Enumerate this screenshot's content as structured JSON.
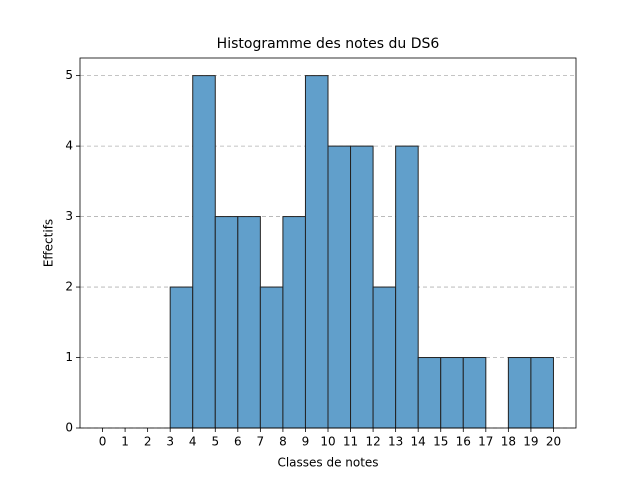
{
  "chart_data": {
    "type": "histogram",
    "title": "Histogramme des notes du DS6",
    "x_label": "Classes de notes",
    "y_label": "Effectifs",
    "bins": [
      0,
      1,
      2,
      3,
      4,
      5,
      6,
      7,
      8,
      9,
      10,
      11,
      12,
      13,
      14,
      15,
      16,
      17,
      18,
      19,
      20
    ],
    "values": [
      0,
      0,
      0,
      2,
      5,
      3,
      3,
      2,
      3,
      5,
      4,
      4,
      2,
      4,
      1,
      1,
      1,
      0,
      1,
      1
    ],
    "color": "#619fcb",
    "edgecolor": "#222222",
    "xlim": [
      -1,
      21
    ],
    "xticks": [
      0,
      1,
      2,
      3,
      4,
      5,
      6,
      7,
      8,
      9,
      10,
      11,
      12,
      13,
      14,
      15,
      16,
      17,
      18,
      19,
      20
    ],
    "ylim": [
      0,
      5.25
    ],
    "yticks": [
      0,
      1,
      2,
      3,
      4,
      5
    ],
    "grid": "y"
  }
}
